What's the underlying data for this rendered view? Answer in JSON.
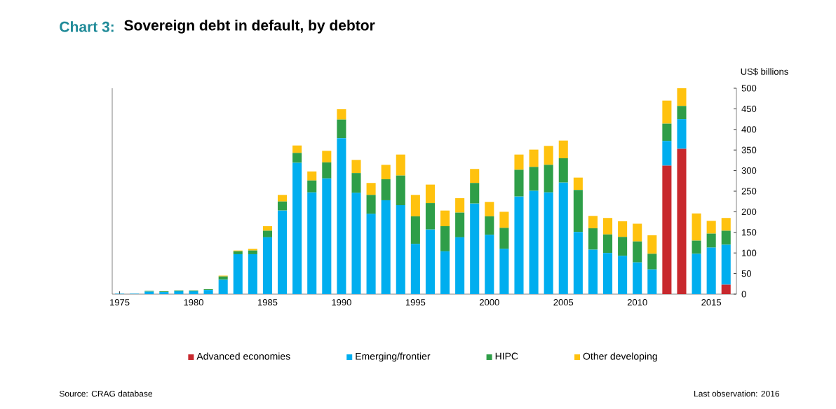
{
  "chart_data": {
    "type": "bar",
    "stacked": true,
    "title": "Sovereign debt in default, by debtor",
    "ylabel": "US$ billions",
    "annotations": [
      "Chart 3:",
      "Source: CRAG database",
      "Last observation: 2016"
    ],
    "x": [
      1975,
      1976,
      1977,
      1978,
      1979,
      1980,
      1981,
      1982,
      1983,
      1984,
      1985,
      1986,
      1987,
      1988,
      1989,
      1990,
      1991,
      1992,
      1993,
      1994,
      1995,
      1996,
      1997,
      1998,
      1999,
      2000,
      2001,
      2002,
      2003,
      2004,
      2005,
      2006,
      2007,
      2008,
      2009,
      2010,
      2011,
      2012,
      2013,
      2014,
      2015,
      2016
    ],
    "series": [
      {
        "name": "Advanced economies",
        "color": "#c8282d",
        "values": [
          0,
          0,
          0,
          0,
          0,
          0,
          0,
          0,
          0,
          0,
          0,
          0,
          0,
          0,
          0,
          0,
          0,
          0,
          0,
          0,
          0,
          0,
          0,
          0,
          0,
          0,
          0,
          0,
          0,
          0,
          0,
          0,
          0,
          0,
          0,
          0,
          0,
          312,
          353,
          0,
          0,
          23
        ]
      },
      {
        "name": "Emerging/frontier",
        "color": "#00aeef",
        "values": [
          1,
          1,
          6,
          5,
          7,
          7,
          10,
          35,
          97,
          97,
          138,
          203,
          319,
          247,
          281,
          379,
          246,
          195,
          228,
          216,
          122,
          157,
          104,
          138,
          220,
          144,
          110,
          237,
          251,
          247,
          271,
          151,
          108,
          100,
          93,
          77,
          60,
          60,
          72,
          98,
          113,
          97
        ]
      },
      {
        "name": "HIPC",
        "color": "#2e9e48",
        "values": [
          0,
          0,
          2,
          2,
          2,
          2,
          2,
          8,
          7,
          9,
          16,
          22,
          24,
          29,
          39,
          45,
          48,
          46,
          51,
          72,
          67,
          64,
          61,
          60,
          50,
          45,
          51,
          65,
          58,
          67,
          59,
          102,
          52,
          45,
          46,
          51,
          38,
          42,
          32,
          32,
          34,
          34
        ]
      },
      {
        "name": "Other developing",
        "color": "#ffc20e",
        "values": [
          0,
          0,
          0,
          0,
          0,
          0,
          0,
          2,
          2,
          4,
          11,
          16,
          18,
          22,
          28,
          25,
          32,
          29,
          35,
          51,
          52,
          45,
          38,
          35,
          34,
          35,
          39,
          37,
          42,
          46,
          43,
          30,
          30,
          40,
          38,
          43,
          45,
          56,
          43,
          66,
          31,
          31
        ]
      }
    ],
    "xlim": [
      1974.5,
      2016.7
    ],
    "xticks": [
      1975,
      1980,
      1985,
      1990,
      1995,
      2000,
      2005,
      2010,
      2015
    ],
    "ylim": [
      0,
      500
    ],
    "yticks": [
      0,
      50,
      100,
      150,
      200,
      250,
      300,
      350,
      400,
      450,
      500
    ],
    "grid": false,
    "legend": "bottom"
  }
}
